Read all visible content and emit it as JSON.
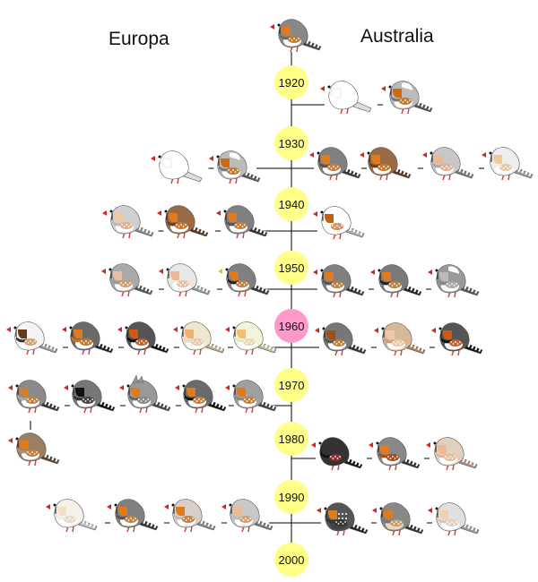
{
  "regions": {
    "left": "Europa",
    "right": "Australia"
  },
  "decades": [
    {
      "label": "1920",
      "highlight": false
    },
    {
      "label": "1930",
      "highlight": false
    },
    {
      "label": "1940",
      "highlight": false
    },
    {
      "label": "1950",
      "highlight": false
    },
    {
      "label": "1960",
      "highlight": true
    },
    {
      "label": "1970",
      "highlight": false
    },
    {
      "label": "1980",
      "highlight": false
    },
    {
      "label": "1990",
      "highlight": false
    },
    {
      "label": "2000",
      "highlight": false
    }
  ],
  "colors": {
    "decade_fill": "#ffff88",
    "decade_highlight": "#ff99cc",
    "line": "#000000"
  },
  "birds": {
    "ancestor": "wild-type-grey",
    "europa": [
      {
        "decade": "1930",
        "morphs": [
          "white",
          "pied-grey"
        ]
      },
      {
        "decade": "1940",
        "morphs": [
          "pale-fawn-silver",
          "fawn",
          "grey"
        ]
      },
      {
        "decade": "1950",
        "morphs": [
          "grey-cheek",
          "light-back-fawn",
          "yellow-beak-grey"
        ]
      },
      {
        "decade": "1960",
        "morphs": [
          "penguin-brown-cheek",
          "orange-breast",
          "black-face",
          "cream",
          "light-yellow"
        ]
      },
      {
        "decade": "1970",
        "morphs": [
          "dominant-silver",
          "black-cheek",
          "crested",
          "black-breast",
          "lightback"
        ]
      },
      {
        "decade": "1980",
        "morphs": [
          "fawn-cheek-brown"
        ]
      },
      {
        "decade": "1990",
        "morphs": [
          "florida-white",
          "grey",
          "chestnut-flanked-white",
          "isabel"
        ]
      }
    ],
    "australia": [
      {
        "decade": "1920",
        "morphs": [
          "white",
          "pied-grey"
        ]
      },
      {
        "decade": "1930",
        "morphs": [
          "grey",
          "fawn",
          "light-back-grey",
          "cream-cheek"
        ]
      },
      {
        "decade": "1940",
        "morphs": [
          "white-brown-cheek"
        ]
      },
      {
        "decade": "1950",
        "morphs": [
          "grey",
          "black-breast-grey",
          "silver-pied"
        ]
      },
      {
        "decade": "1960",
        "morphs": [
          "grey-brown",
          "pale-fawn",
          "black-face"
        ]
      },
      {
        "decade": "1980",
        "morphs": [
          "black",
          "fawn-grey",
          "light-fawn"
        ]
      },
      {
        "decade": "1990",
        "morphs": [
          "spotted-black",
          "brown-spot",
          "pale-cream-cheek"
        ]
      }
    ]
  }
}
